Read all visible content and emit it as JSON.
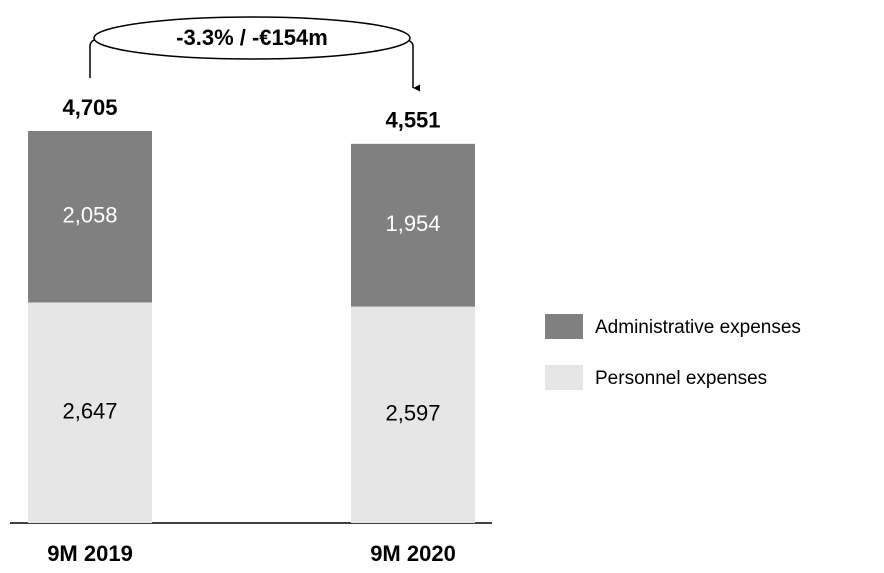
{
  "chart_data": {
    "type": "stacked_bar",
    "annotation": "-3.3% / -€154m",
    "categories": [
      "9M 2019",
      "9M 2020"
    ],
    "series": [
      {
        "name": "Personnel expenses",
        "color": "#e6e6e6",
        "values": [
          2647,
          2597
        ],
        "value_labels": [
          "2,647",
          "2,597"
        ]
      },
      {
        "name": "Administrative expenses",
        "color": "#808080",
        "values": [
          2058,
          1954
        ],
        "value_labels": [
          "2,058",
          "1,954"
        ]
      }
    ],
    "totals": [
      4705,
      4551
    ],
    "total_labels": [
      "4,705",
      "4,551"
    ]
  }
}
